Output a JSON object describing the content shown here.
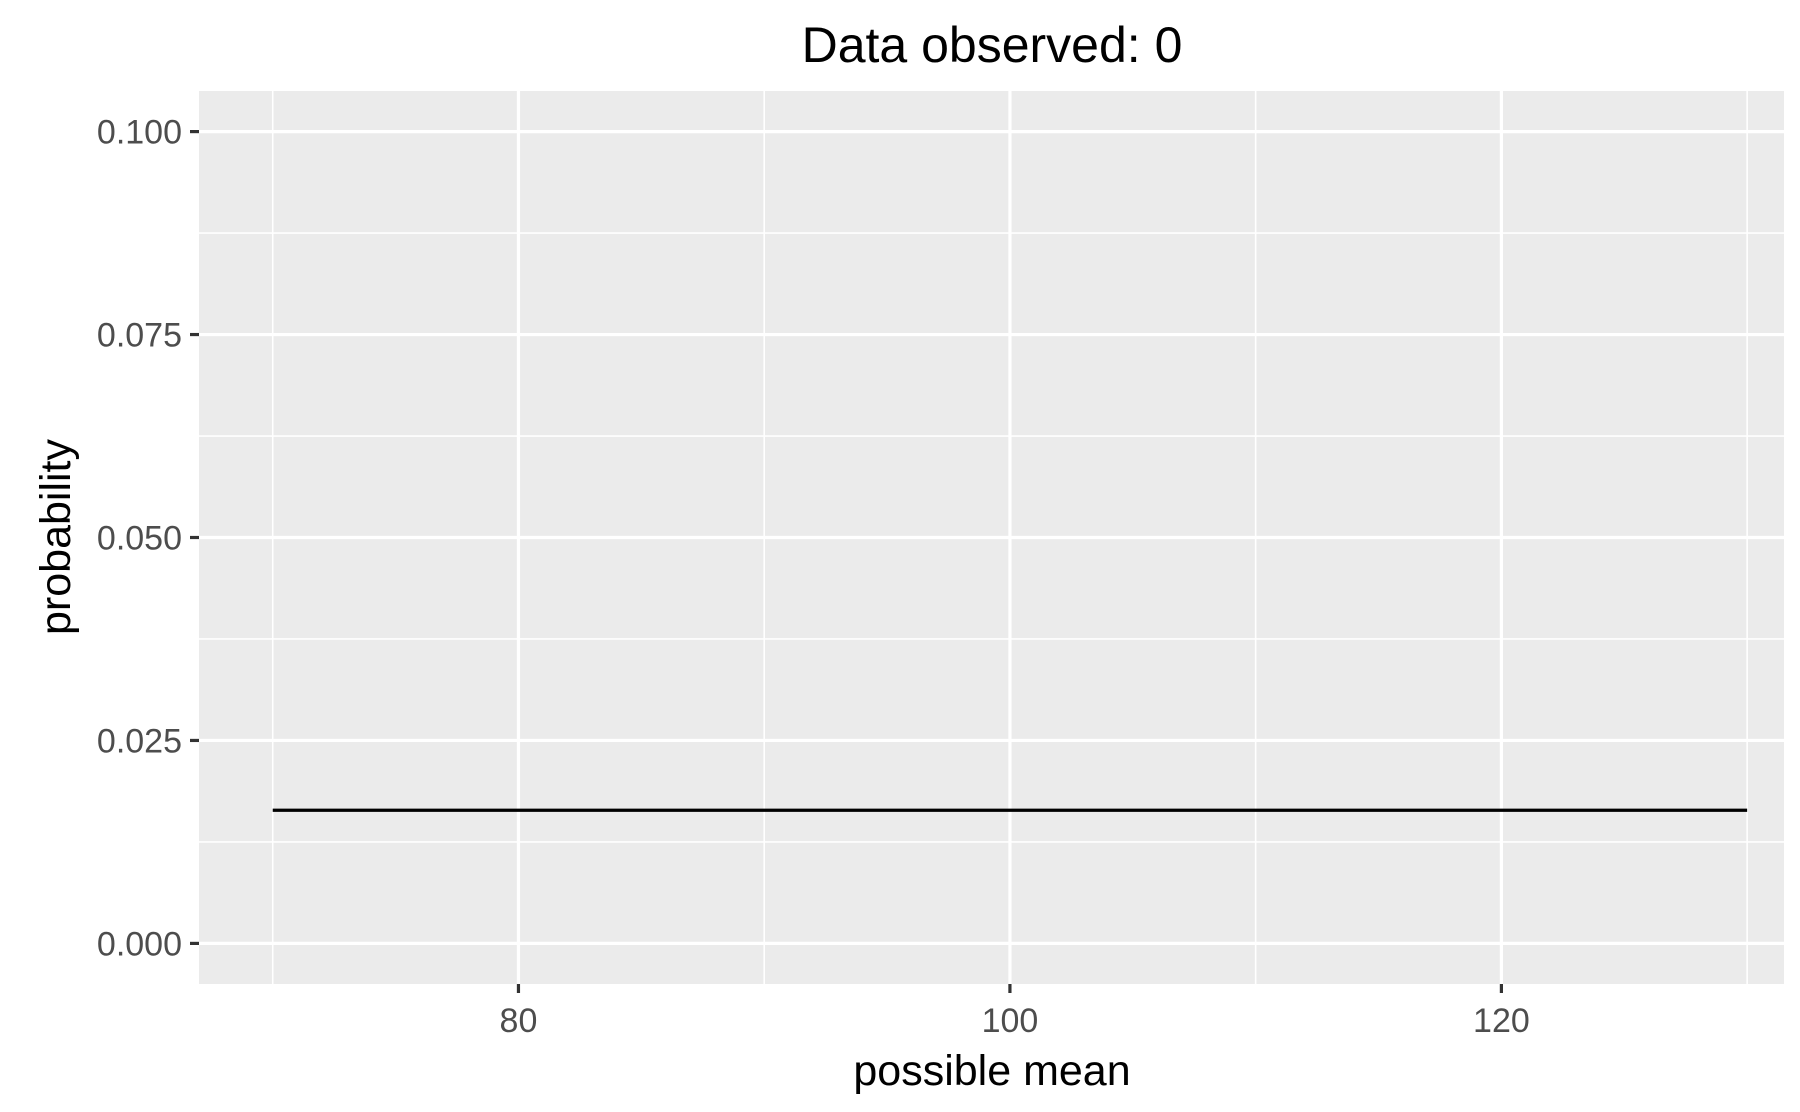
{
  "chart_data": {
    "type": "line",
    "title": "Data observed: 0",
    "xlabel": "possible mean",
    "ylabel": "probability",
    "xlim": [
      67,
      131.5
    ],
    "ylim": [
      -0.005,
      0.105
    ],
    "x_ticks": [
      80,
      100,
      120
    ],
    "x_tick_labels": [
      "80",
      "100",
      "120"
    ],
    "x_minor_ticks": [
      70,
      90,
      110,
      130
    ],
    "y_ticks": [
      0,
      0.025,
      0.05,
      0.075,
      0.1
    ],
    "y_tick_labels": [
      "0.000",
      "0.025",
      "0.050",
      "0.075",
      "0.100"
    ],
    "y_minor_ticks": [
      0.0125,
      0.0375,
      0.0625,
      0.0875
    ],
    "grid": true,
    "legend": "none",
    "colors": {
      "panel": "#ebebeb",
      "grid": "#ffffff",
      "line": "#000000",
      "tick_text": "#4d4d4d"
    },
    "series": [
      {
        "x": [
          70,
          130
        ],
        "y": [
          0.0164,
          0.0164
        ]
      }
    ]
  }
}
